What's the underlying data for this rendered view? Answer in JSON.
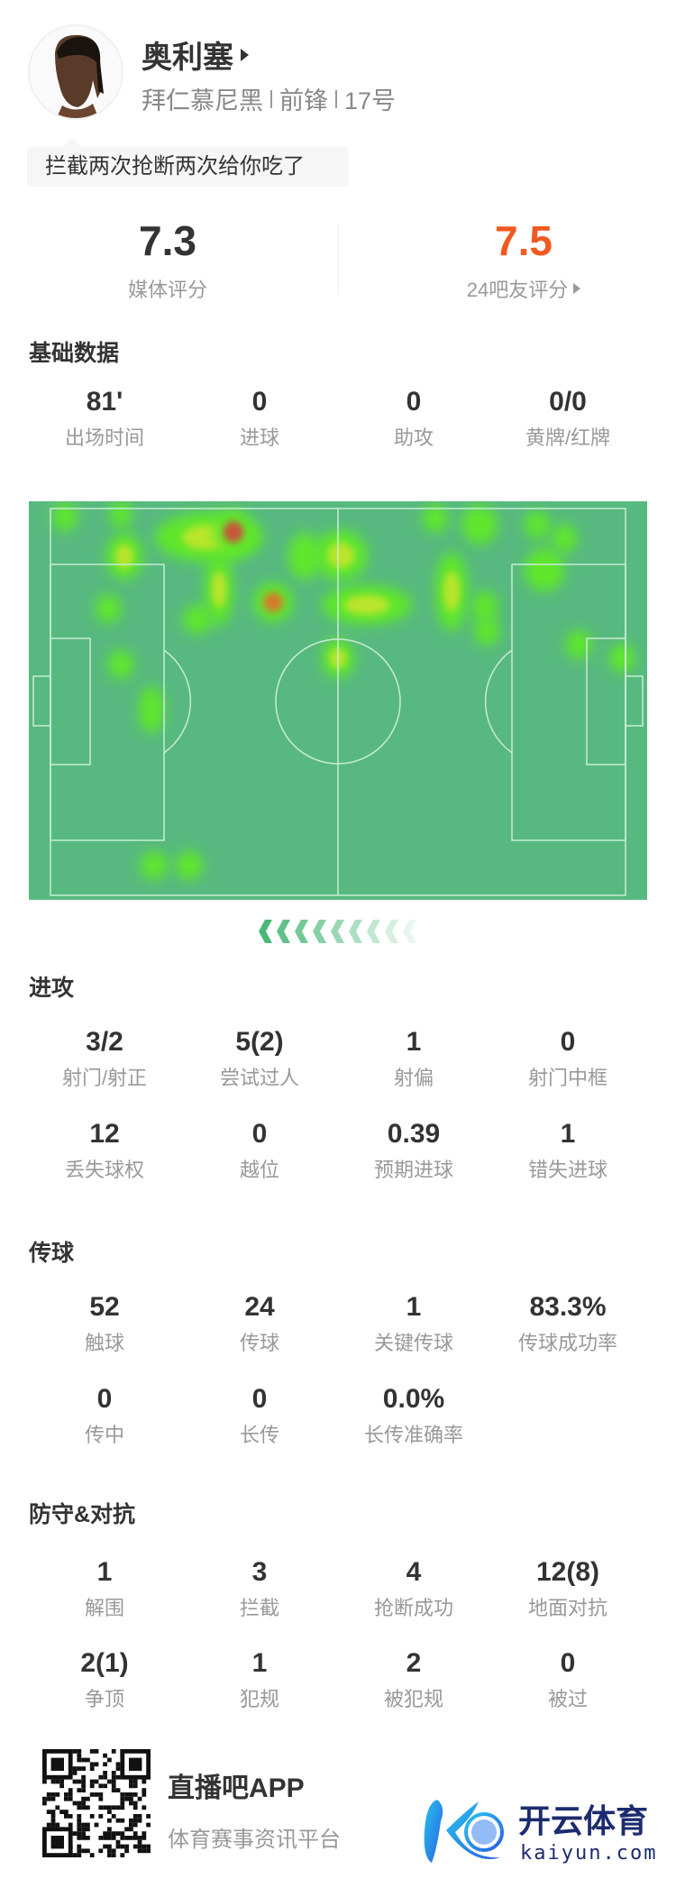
{
  "player": {
    "name": "奥利塞",
    "team": "拜仁慕尼黑",
    "position": "前锋",
    "number": "17号",
    "comment": "拦截两次抢断两次给你吃了"
  },
  "ratings": {
    "media": {
      "value": "7.3",
      "label": "媒体评分"
    },
    "fans": {
      "value": "7.5",
      "label": "24吧友评分"
    }
  },
  "colors": {
    "accent": "#f05a22",
    "pitch": "#57b97f",
    "text": "#333333",
    "muted": "#999999"
  },
  "sections": [
    {
      "title": "基础数据",
      "rows": [
        [
          {
            "v": "81'",
            "l": "出场时间"
          },
          {
            "v": "0",
            "l": "进球"
          },
          {
            "v": "0",
            "l": "助攻"
          },
          {
            "v": "0/0",
            "l": "黄牌/红牌"
          }
        ]
      ]
    },
    {
      "title": "进攻",
      "rows": [
        [
          {
            "v": "3/2",
            "l": "射门/射正"
          },
          {
            "v": "5(2)",
            "l": "尝试过人"
          },
          {
            "v": "1",
            "l": "射偏"
          },
          {
            "v": "0",
            "l": "射门中框"
          }
        ],
        [
          {
            "v": "12",
            "l": "丢失球权"
          },
          {
            "v": "0",
            "l": "越位"
          },
          {
            "v": "0.39",
            "l": "预期进球"
          },
          {
            "v": "1",
            "l": "错失进球"
          }
        ]
      ]
    },
    {
      "title": "传球",
      "rows": [
        [
          {
            "v": "52",
            "l": "触球"
          },
          {
            "v": "24",
            "l": "传球"
          },
          {
            "v": "1",
            "l": "关键传球"
          },
          {
            "v": "83.3%",
            "l": "传球成功率"
          }
        ],
        [
          {
            "v": "0",
            "l": "传中"
          },
          {
            "v": "0",
            "l": "长传"
          },
          {
            "v": "0.0%",
            "l": "长传准确率"
          }
        ]
      ]
    },
    {
      "title": "防守&对抗",
      "rows": [
        [
          {
            "v": "1",
            "l": "解围"
          },
          {
            "v": "3",
            "l": "拦截"
          },
          {
            "v": "4",
            "l": "抢断成功"
          },
          {
            "v": "12(8)",
            "l": "地面对抗"
          }
        ],
        [
          {
            "v": "2(1)",
            "l": "争顶"
          },
          {
            "v": "1",
            "l": "犯规"
          },
          {
            "v": "2",
            "l": "被犯规"
          },
          {
            "v": "0",
            "l": "被过"
          }
        ]
      ]
    }
  ],
  "footer": {
    "app_name": "直播吧APP",
    "tagline": "体育赛事资讯平台",
    "logo_text": "开云体育",
    "logo_domain": "kaiyun.com"
  },
  "icons": {
    "name_arrow": "play-triangle-icon",
    "fans_arrow": "play-triangle-icon",
    "attack_direction": "chevron-left-icon"
  }
}
